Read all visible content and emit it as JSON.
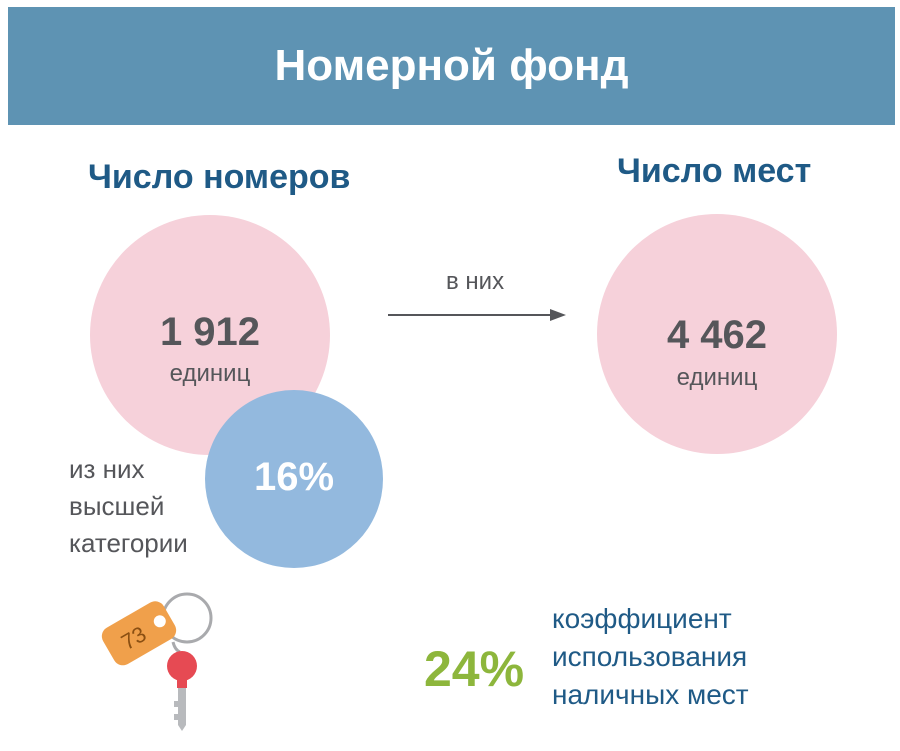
{
  "header": {
    "title": "Номерной фонд"
  },
  "rooms": {
    "heading": "Число номеров",
    "value": "1 912",
    "unit": "единиц",
    "premium_share": "16%",
    "premium_label_lines": [
      "из них",
      "высшей",
      "категории"
    ]
  },
  "arrow": {
    "label": "в них"
  },
  "places": {
    "heading": "Число мест",
    "value": "4 462",
    "unit": "единиц"
  },
  "utilization": {
    "value": "24%",
    "label_lines": [
      "коэффициент",
      "использования",
      "наличных мест"
    ]
  },
  "key_tag": {
    "number": "73"
  },
  "colors": {
    "banner": "#5e93b3",
    "heading": "#1f5a86",
    "pink_circle": "#f6d1da",
    "blue_circle": "#93b9de",
    "green_accent": "#8db63c",
    "key_tag": "#f0a04b",
    "key_head": "#e64a53"
  },
  "icons": {
    "keys": "keys-icon",
    "arrow": "arrow-right-icon"
  }
}
